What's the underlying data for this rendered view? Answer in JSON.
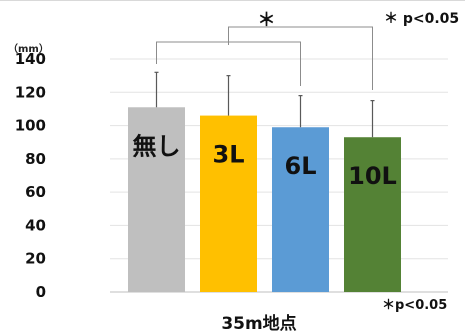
{
  "chart_data": {
    "type": "bar",
    "categories": [
      "無し",
      "3L",
      "6L",
      "10L"
    ],
    "values": [
      111,
      106,
      99,
      93
    ],
    "error": [
      21,
      24,
      19,
      22
    ],
    "colors": [
      "#bfbfbf",
      "#ffc000",
      "#5b9bd5",
      "#548235"
    ],
    "ylim": [
      0,
      140
    ],
    "yticks": [
      0,
      20,
      40,
      60,
      80,
      100,
      120,
      140
    ],
    "ylabel": "（mm）",
    "xlabel": "35m地点",
    "grid": true,
    "significance": {
      "marker": "＊",
      "note_top": "＊ p<0.05",
      "note_bottom": "＊p<0.05"
    }
  }
}
